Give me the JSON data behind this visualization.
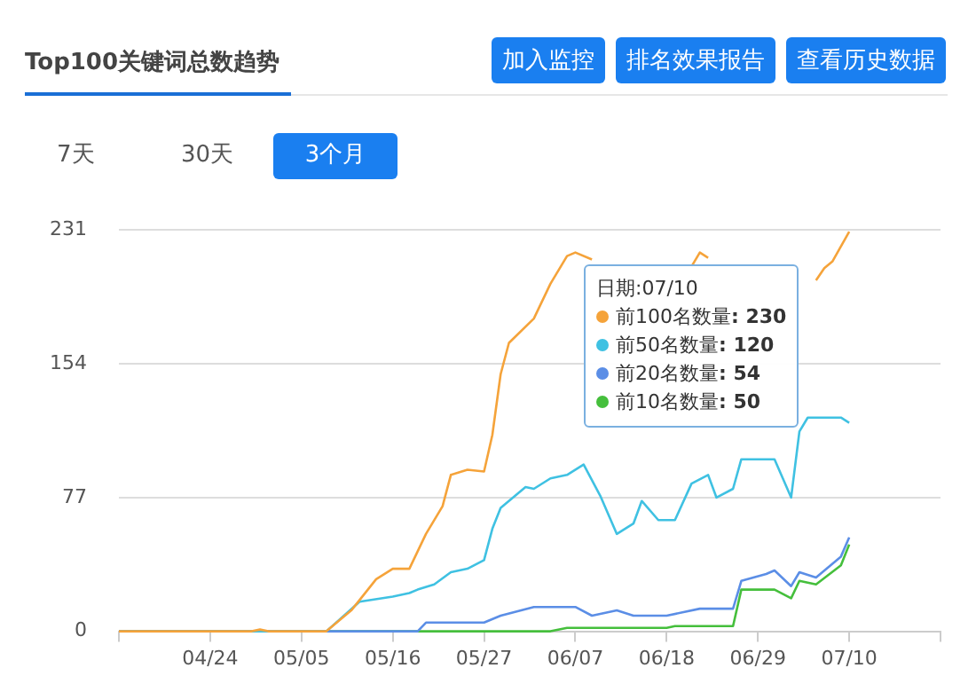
{
  "chart_data": {
    "type": "line",
    "title": "Top100关键词总数趋势",
    "legend": "top",
    "legend_title": "日期:07/10",
    "annotations": [
      "加入监控",
      "排名效果报告",
      "查看历史数据",
      "7天",
      "30天",
      "3个月",
      ": 230",
      ": 120",
      ": 54",
      ": 50"
    ],
    "xlim": [
      "--04-13",
      "--07-21"
    ],
    "xticks": [
      {
        "value": "--04-13",
        "label": null
      },
      {
        "value": "--04-24",
        "label": "04/24"
      },
      {
        "value": "--05-05",
        "label": "05/05"
      },
      {
        "value": "--05-16",
        "label": "05/16"
      },
      {
        "value": "--05-27",
        "label": "05/27"
      },
      {
        "value": "--06-07",
        "label": "06/07"
      },
      {
        "value": "--06-18",
        "label": "06/18"
      },
      {
        "value": "--06-29",
        "label": "06/29"
      },
      {
        "value": "--07-10",
        "label": "07/10"
      },
      {
        "value": "--07-21",
        "label": null
      }
    ],
    "ylim": [
      0,
      231
    ],
    "yticks": [
      0,
      77,
      154,
      231
    ],
    "grid": "y",
    "series": [
      {
        "name": "前100名数量",
        "color": "#f5a33a",
        "x": [
          "--04-13",
          "--04-29",
          "--04-30",
          "--05-01",
          "--05-08",
          "--05-11",
          "--05-14",
          "--05-16",
          "--05-18",
          "--05-20",
          "--05-22",
          "--05-23",
          "--05-25",
          "--05-27",
          "--05-28",
          "--05-29",
          "--05-30",
          "--06-02",
          "--06-04",
          "--06-06",
          "--06-07",
          "--06-09",
          "--06-10",
          "--06-21",
          "--06-22",
          "--06-23",
          "--06-24",
          "--07-06",
          "--07-07",
          "--07-08",
          "--07-10"
        ],
        "values": [
          0,
          0,
          1,
          0,
          0,
          12,
          30,
          36,
          36,
          56,
          72,
          90,
          93,
          92,
          113,
          148,
          166,
          180,
          200,
          216,
          218,
          214,
          null,
          210,
          218,
          215,
          null,
          202,
          209,
          213,
          230
        ]
      },
      {
        "name": "前50名数量",
        "color": "#3fc1e2",
        "x": [
          "--04-13",
          "--05-08",
          "--05-12",
          "--05-16",
          "--05-18",
          "--05-19",
          "--05-21",
          "--05-23",
          "--05-25",
          "--05-27",
          "--05-28",
          "--05-29",
          "--06-01",
          "--06-02",
          "--06-04",
          "--06-06",
          "--06-08",
          "--06-10",
          "--06-12",
          "--06-14",
          "--06-15",
          "--06-17",
          "--06-19",
          "--06-21",
          "--06-23",
          "--06-24",
          "--06-26",
          "--06-27",
          "--07-01",
          "--07-03",
          "--07-04",
          "--07-05",
          "--07-09",
          "--07-10"
        ],
        "values": [
          0,
          0,
          17,
          20,
          22,
          24,
          27,
          34,
          36,
          41,
          59,
          71,
          83,
          82,
          88,
          90,
          96,
          78,
          56,
          62,
          75,
          64,
          64,
          85,
          90,
          77,
          82,
          99,
          99,
          77,
          115,
          123,
          123,
          120
        ]
      },
      {
        "name": "前20名数量",
        "color": "#5b8ee6",
        "x": [
          "--04-13",
          "--05-19",
          "--05-20",
          "--05-27",
          "--05-29",
          "--06-02",
          "--06-07",
          "--06-09",
          "--06-12",
          "--06-14",
          "--06-18",
          "--06-22",
          "--06-26",
          "--06-27",
          "--06-30",
          "--07-01",
          "--07-03",
          "--07-04",
          "--07-06",
          "--07-09",
          "--07-10"
        ],
        "values": [
          0,
          0,
          5,
          5,
          9,
          14,
          14,
          9,
          12,
          9,
          9,
          13,
          13,
          29,
          33,
          35,
          26,
          34,
          31,
          43,
          54
        ]
      },
      {
        "name": "前10名数量",
        "color": "#45bf3c",
        "x": [
          "--04-13",
          "--06-04",
          "--06-06",
          "--06-18",
          "--06-19",
          "--06-26",
          "--06-27",
          "--07-01",
          "--07-03",
          "--07-04",
          "--07-06",
          "--07-09",
          "--07-10"
        ],
        "values": [
          0,
          0,
          2,
          2,
          3,
          3,
          24,
          24,
          19,
          29,
          27,
          38,
          50
        ]
      }
    ]
  }
}
